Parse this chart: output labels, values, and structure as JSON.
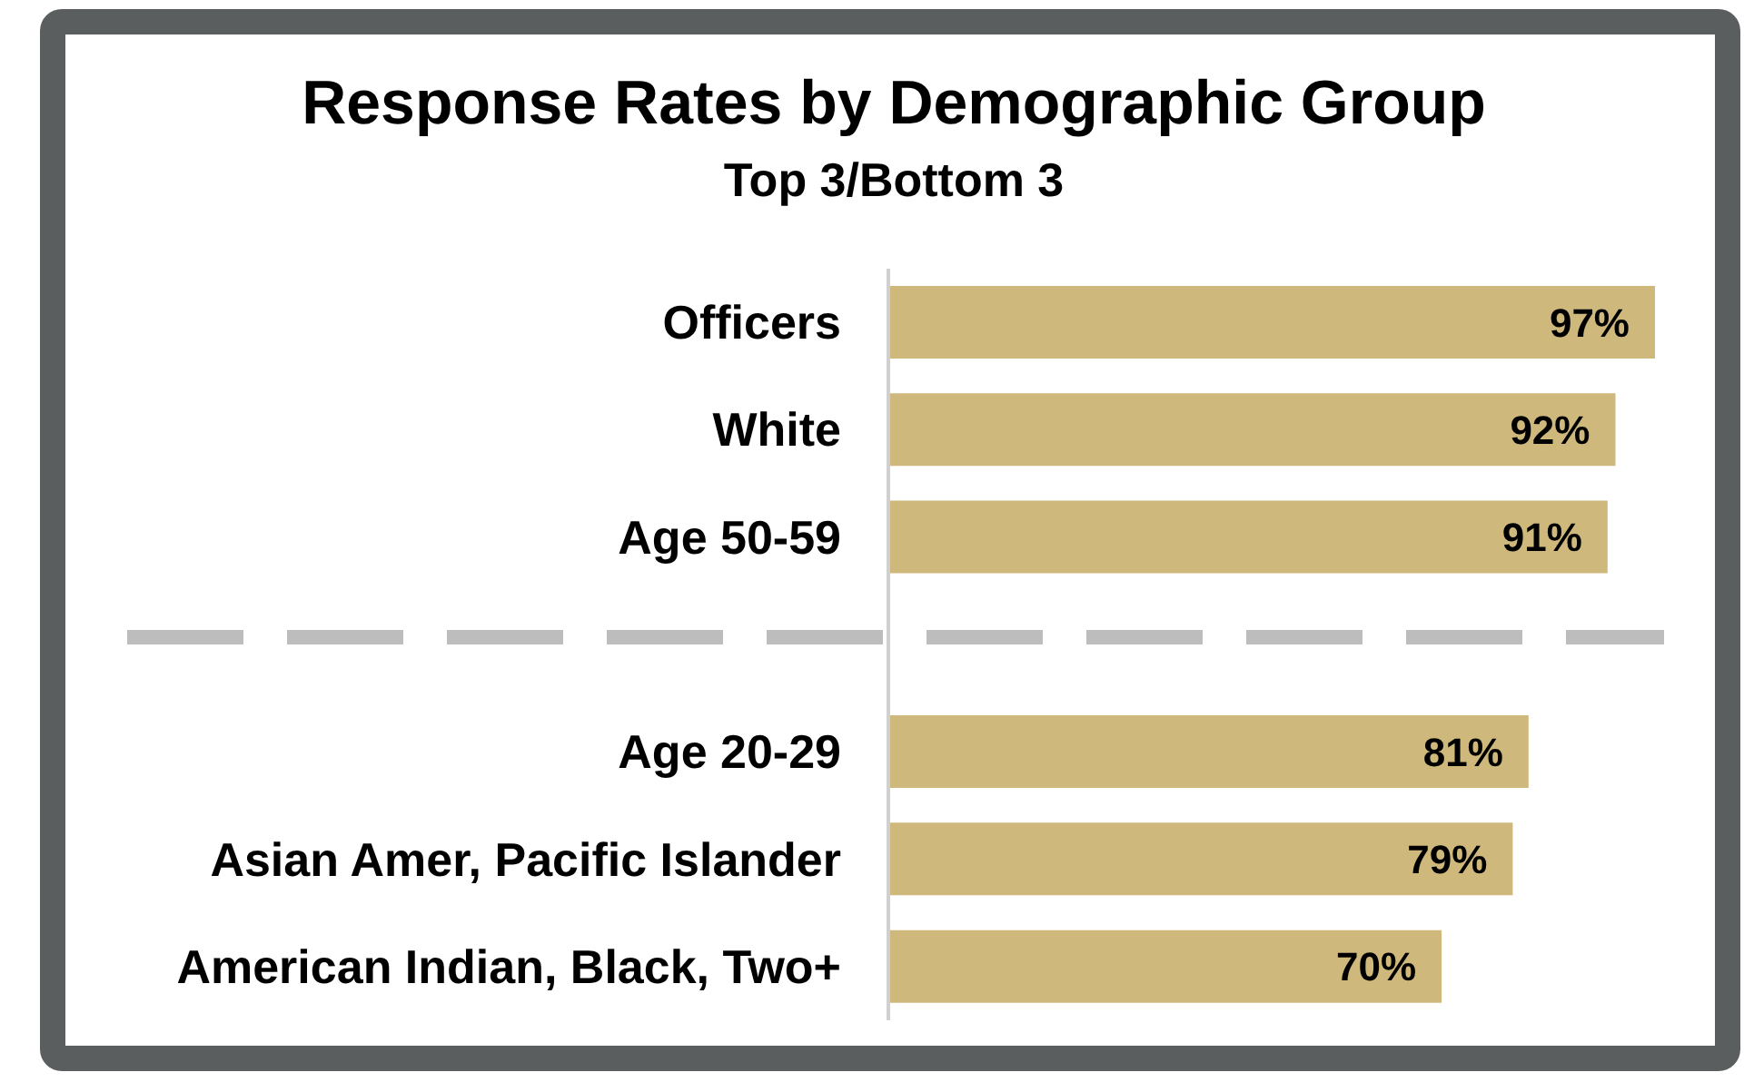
{
  "chart_data": {
    "type": "bar",
    "orientation": "horizontal",
    "title": "Response Rates by Demographic Group",
    "subtitle": "Top 3/Bottom 3",
    "categories": [
      "Officers",
      "White",
      "Age 50-59",
      null,
      "Age 20-29",
      "Asian Amer, Pacific Islander",
      "American Indian, Black, Two+"
    ],
    "values": [
      97,
      92,
      91,
      null,
      81,
      79,
      70
    ],
    "value_labels": [
      "97%",
      "92%",
      "91%",
      null,
      "81%",
      "79%",
      "70%"
    ],
    "color": "#cfb87c"
  }
}
